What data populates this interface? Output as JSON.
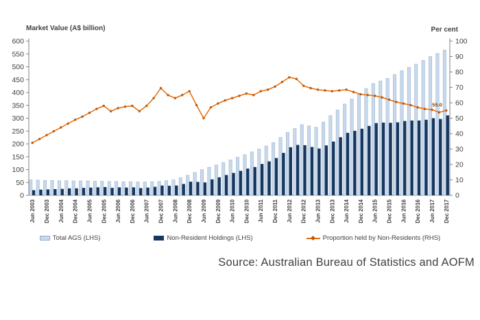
{
  "axes": {
    "left_title": "Market Value (A$ billion)",
    "right_title": "Per cent"
  },
  "legend": {
    "items": [
      {
        "label": "Total AGS (LHS)",
        "swatch": "total-ags-bar"
      },
      {
        "label": "Non-Resident Holdings (LHS)",
        "swatch": "non-resident-bar"
      },
      {
        "label": "Proportion held by Non-Residents (RHS)",
        "swatch": "proportion-line"
      }
    ]
  },
  "annotation": {
    "label": "55.0"
  },
  "source": {
    "text": "Source: Australian Bureau of Statistics and AOFM"
  },
  "colors": {
    "total_ags_fill": "#C9D9EC",
    "total_ags_border": "#8FABC9",
    "non_resident_fill": "#17375E",
    "proportion_line": "#E36C09",
    "proportion_marker": "#C05A0A",
    "annotation_text": "#8A4500",
    "axis_line": "#808080",
    "tick_text": "#404040"
  },
  "chart_data": {
    "type": "bar",
    "subtype": "clustered bars with overlaid line (dual axis combo)",
    "gridlines": false,
    "legend_position": "bottom",
    "left_axis": {
      "min": 0,
      "max": 600,
      "step": 50,
      "ticks": [
        600,
        550,
        500,
        450,
        400,
        350,
        300,
        250,
        200,
        150,
        100,
        50,
        0
      ]
    },
    "right_axis": {
      "min": 0,
      "max": 100,
      "step": 10,
      "ticks": [
        100,
        90,
        80,
        70,
        60,
        50,
        40,
        30,
        20,
        10,
        0
      ]
    },
    "x_tick_labels": [
      "Jun 2003",
      "Dec 2003",
      "Jun 2004",
      "Dec 2004",
      "Jun 2005",
      "Dec 2005",
      "Jun 2006",
      "Dec 2006",
      "Jun 2007",
      "Dec 2007",
      "Jun 2008",
      "Dec 2008",
      "Jun 2009",
      "Dec 2009",
      "Jun 2010",
      "Dec 2010",
      "Jun 2011",
      "Dec 2011",
      "Jun 2012",
      "Dec 2012",
      "Jun 2013",
      "Dec 2013",
      "Jun 2014",
      "Dec 2014",
      "Jun 2015",
      "Dec 2015",
      "Jun 2016",
      "Dec 2016",
      "Jun 2017",
      "Dec 2017"
    ],
    "categories": [
      "Jun 2003",
      "Sep 2003",
      "Dec 2003",
      "Mar 2004",
      "Jun 2004",
      "Sep 2004",
      "Dec 2004",
      "Mar 2005",
      "Jun 2005",
      "Sep 2005",
      "Dec 2005",
      "Mar 2006",
      "Jun 2006",
      "Sep 2006",
      "Dec 2006",
      "Mar 2007",
      "Jun 2007",
      "Sep 2007",
      "Dec 2007",
      "Mar 2008",
      "Jun 2008",
      "Sep 2008",
      "Dec 2008",
      "Mar 2009",
      "Jun 2009",
      "Sep 2009",
      "Dec 2009",
      "Mar 2010",
      "Jun 2010",
      "Sep 2010",
      "Dec 2010",
      "Mar 2011",
      "Jun 2011",
      "Sep 2011",
      "Dec 2011",
      "Mar 2012",
      "Jun 2012",
      "Sep 2012",
      "Dec 2012",
      "Mar 2013",
      "Jun 2013",
      "Sep 2013",
      "Dec 2013",
      "Mar 2014",
      "Jun 2014",
      "Sep 2014",
      "Dec 2014",
      "Mar 2015",
      "Jun 2015",
      "Sep 2015",
      "Dec 2015",
      "Mar 2016",
      "Jun 2016",
      "Sep 2016",
      "Dec 2016",
      "Mar 2017",
      "Jun 2017",
      "Sep 2017",
      "Dec 2017"
    ],
    "series": [
      {
        "name": "Total AGS (LHS)",
        "type": "bar",
        "axis": "left",
        "values": [
          60,
          59,
          58,
          58,
          57,
          57,
          56,
          56,
          56,
          55,
          55,
          54,
          54,
          53,
          53,
          52,
          52,
          53,
          54,
          57,
          60,
          68,
          78,
          89,
          100,
          109,
          118,
          128,
          138,
          148,
          158,
          169,
          180,
          192,
          205,
          225,
          245,
          260,
          275,
          270,
          265,
          285,
          310,
          332,
          355,
          375,
          395,
          415,
          435,
          445,
          455,
          470,
          485,
          498,
          510,
          525,
          540,
          552,
          565
        ]
      },
      {
        "name": "Non-Resident Holdings (LHS)",
        "type": "bar",
        "axis": "left",
        "values": [
          20,
          22,
          23,
          24,
          25,
          27,
          27,
          29,
          30,
          31,
          32,
          29,
          31,
          30,
          31,
          28,
          30,
          33,
          38,
          37,
          38,
          44,
          53,
          52,
          50,
          62,
          70,
          79,
          87,
          95,
          104,
          110,
          122,
          132,
          145,
          165,
          187,
          196,
          195,
          188,
          182,
          194,
          209,
          226,
          243,
          251,
          259,
          270,
          281,
          283,
          282,
          284,
          289,
          291,
          291,
          294,
          300,
          297,
          311
        ]
      },
      {
        "name": "Proportion held by Non-Residents (RHS)",
        "type": "line",
        "axis": "right",
        "values": [
          34,
          36.5,
          39,
          41.5,
          44,
          46.5,
          49,
          51,
          53.5,
          56,
          58,
          54.5,
          56.5,
          57.5,
          58,
          54.5,
          58,
          63,
          69.5,
          65,
          63,
          65,
          67.5,
          58.5,
          50,
          57,
          59.5,
          61.5,
          63,
          64.5,
          66,
          65,
          67.5,
          68.5,
          70.5,
          73.5,
          76.5,
          75.5,
          71,
          69.5,
          68.5,
          68,
          67.5,
          68,
          68.5,
          67,
          65.5,
          65,
          64.5,
          63.5,
          62,
          60.5,
          59.5,
          58.5,
          57,
          56,
          55.5,
          53.8,
          55
        ]
      }
    ],
    "annotations": [
      {
        "text": "55.0",
        "series": "Proportion held by Non-Residents (RHS)",
        "point": "Dec 2017"
      }
    ]
  }
}
